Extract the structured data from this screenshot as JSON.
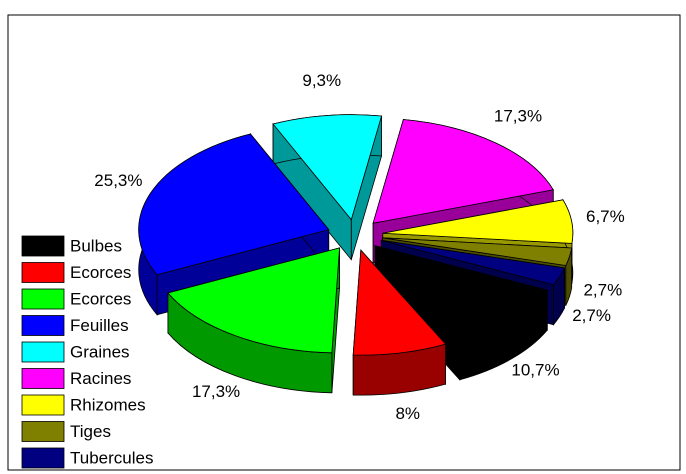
{
  "chart_data": {
    "type": "pie",
    "style": "3d-exploded",
    "categories": [
      "Bulbes",
      "Ecorces",
      "Ecorces",
      "Feuilles",
      "Graines",
      "Racines",
      "Rhizomes",
      "Tiges",
      "Tubercules"
    ],
    "values": [
      10.7,
      8,
      17.3,
      25.3,
      9.3,
      17.3,
      6.7,
      2.7,
      2.7
    ],
    "value_labels": [
      "10,7%",
      "8%",
      "17,3%",
      "25,3%",
      "9,3%",
      "17,3%",
      "6,7%",
      "2,7%",
      "2,7%"
    ],
    "colors": [
      "#000000",
      "#ff0000",
      "#00ff00",
      "#0000ff",
      "#00ffff",
      "#ff00ff",
      "#ffff00",
      "#808000",
      "#000080"
    ],
    "legend": "lower left"
  }
}
